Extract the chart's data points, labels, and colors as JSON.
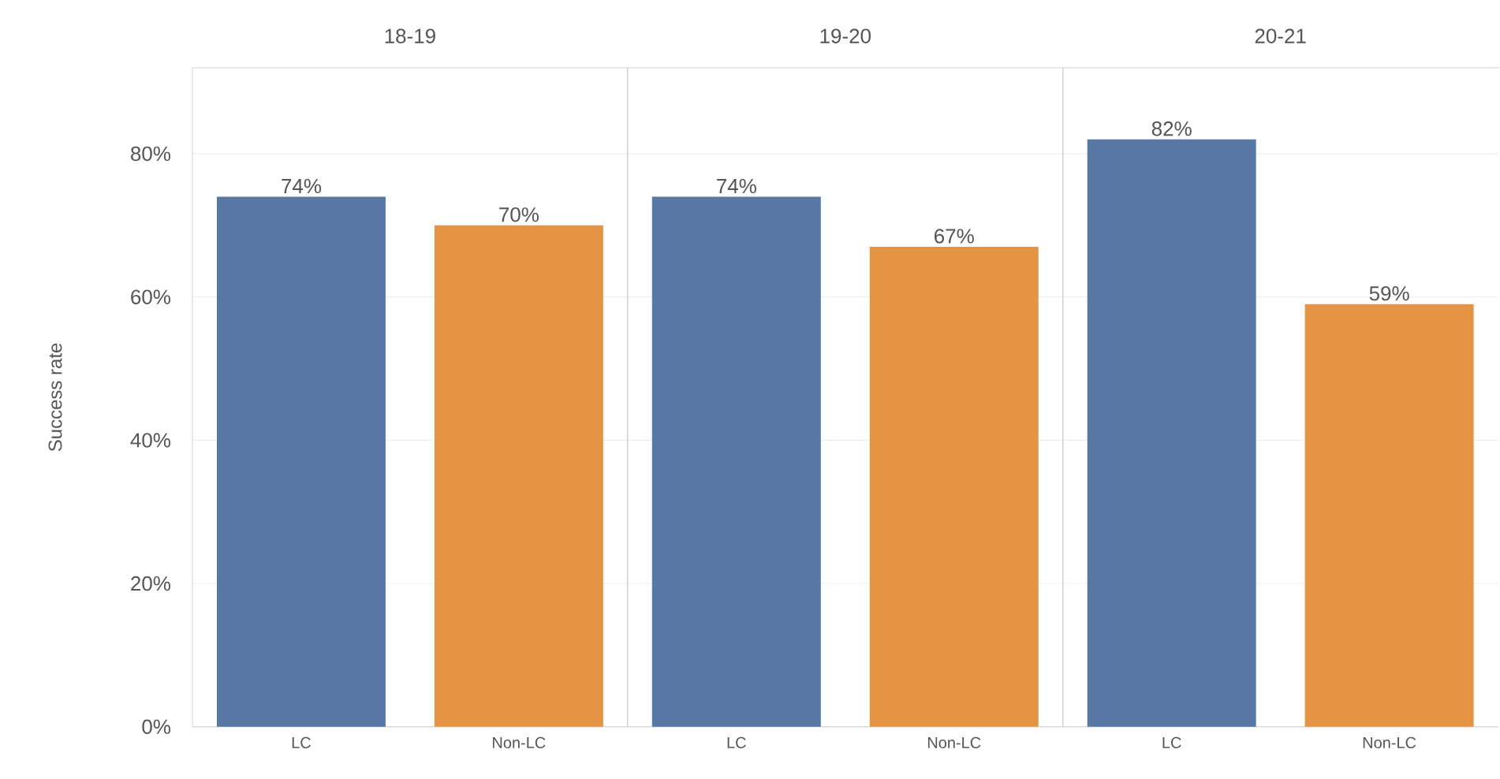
{
  "chart_data": [
    {
      "type": "bar",
      "title": "18-19",
      "ylabel": "Success rate",
      "categories": [
        "LC",
        "Non-LC"
      ],
      "values": [
        74,
        70
      ],
      "colors": [
        "#5778a4",
        "#e49444"
      ],
      "value_labels": [
        "74%",
        "70%"
      ],
      "ylim": [
        0,
        92
      ],
      "yticks": [
        {
          "value": 0,
          "label": "0%"
        },
        {
          "value": 20,
          "label": "20%"
        },
        {
          "value": 40,
          "label": "40%"
        },
        {
          "value": 60,
          "label": "60%"
        },
        {
          "value": 80,
          "label": "80%"
        }
      ],
      "grid": "y"
    },
    {
      "type": "bar",
      "title": "19-20",
      "categories": [
        "LC",
        "Non-LC"
      ],
      "values": [
        74,
        67
      ],
      "colors": [
        "#5778a4",
        "#e49444"
      ],
      "value_labels": [
        "74%",
        "67%"
      ],
      "ylim": [
        0,
        92
      ],
      "yticks": [
        {
          "value": 0,
          "label": null
        },
        {
          "value": 20,
          "label": null
        },
        {
          "value": 40,
          "label": null
        },
        {
          "value": 60,
          "label": null
        },
        {
          "value": 80,
          "label": null
        }
      ],
      "grid": "y",
      "tick_labels": "x"
    },
    {
      "type": "bar",
      "title": "20-21",
      "categories": [
        "LC",
        "Non-LC"
      ],
      "values": [
        82,
        59
      ],
      "colors": [
        "#5778a4",
        "#e49444"
      ],
      "value_labels": [
        "82%",
        "59%"
      ],
      "ylim": [
        0,
        92
      ],
      "yticks": [
        {
          "value": 0,
          "label": null
        },
        {
          "value": 20,
          "label": null
        },
        {
          "value": 40,
          "label": null
        },
        {
          "value": 60,
          "label": null
        },
        {
          "value": 80,
          "label": null
        }
      ],
      "grid": "y",
      "tick_labels": "x"
    }
  ]
}
